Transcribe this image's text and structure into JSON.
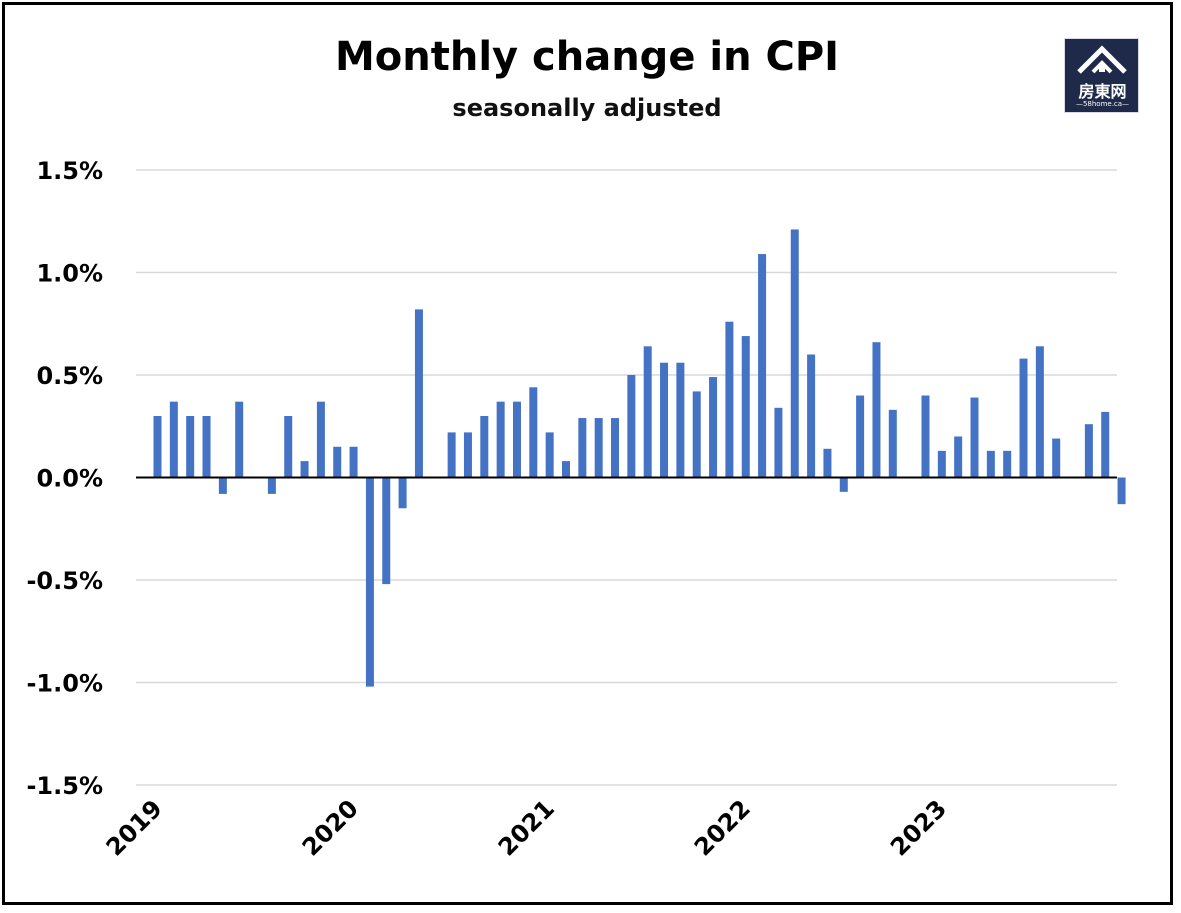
{
  "chart_data": {
    "type": "bar",
    "title": "Monthly change in CPI",
    "subtitle": "seasonally adjusted",
    "xlabel": "",
    "ylabel": "",
    "ylim": [
      -1.5,
      1.5
    ],
    "yticks": [
      1.5,
      1.0,
      0.5,
      0.0,
      -0.5,
      -1.0,
      -1.5
    ],
    "ytick_labels": [
      "1.5%",
      "1.0%",
      "0.5%",
      "0.0%",
      "-0.5%",
      "-1.0%",
      "-1.5%"
    ],
    "xtick_labels": [
      "2019",
      "2020",
      "2021",
      "2022",
      "2023"
    ],
    "grid": true,
    "bar_color": "#4472c4",
    "categories": [
      "2019-01",
      "2019-02",
      "2019-03",
      "2019-04",
      "2019-05",
      "2019-06",
      "2019-07",
      "2019-08",
      "2019-09",
      "2019-10",
      "2019-11",
      "2019-12",
      "2020-01",
      "2020-02",
      "2020-03",
      "2020-04",
      "2020-05",
      "2020-06",
      "2020-07",
      "2020-08",
      "2020-09",
      "2020-10",
      "2020-11",
      "2020-12",
      "2021-01",
      "2021-02",
      "2021-03",
      "2021-04",
      "2021-05",
      "2021-06",
      "2021-07",
      "2021-08",
      "2021-09",
      "2021-10",
      "2021-11",
      "2021-12",
      "2022-01",
      "2022-02",
      "2022-03",
      "2022-04",
      "2022-05",
      "2022-06",
      "2022-07",
      "2022-08",
      "2022-09",
      "2022-10",
      "2022-11",
      "2022-12",
      "2023-01",
      "2023-02",
      "2023-03",
      "2023-04",
      "2023-05",
      "2023-06",
      "2023-07",
      "2023-08",
      "2023-09",
      "2023-10",
      "2023-11",
      "2023-12"
    ],
    "values": [
      0.3,
      0.37,
      0.3,
      0.3,
      -0.08,
      0.37,
      0.0,
      -0.08,
      0.3,
      0.08,
      0.37,
      0.15,
      0.15,
      -1.02,
      -0.52,
      -0.15,
      0.82,
      0.0,
      0.22,
      0.22,
      0.3,
      0.37,
      0.37,
      0.44,
      0.22,
      0.08,
      0.29,
      0.29,
      0.29,
      0.5,
      0.64,
      0.56,
      0.56,
      0.42,
      0.49,
      0.76,
      0.69,
      1.09,
      0.34,
      1.21,
      0.6,
      0.14,
      -0.07,
      0.4,
      0.66,
      0.33,
      0.0,
      0.4,
      0.13,
      0.2,
      0.39,
      0.13,
      0.13,
      0.58,
      0.64,
      0.19,
      0.0,
      0.26,
      0.32,
      -0.13
    ]
  },
  "logo": {
    "name": "房東网",
    "site": "—58home.ca—",
    "colors": {
      "background": "#1f2a4a",
      "foreground": "#ffffff"
    }
  }
}
